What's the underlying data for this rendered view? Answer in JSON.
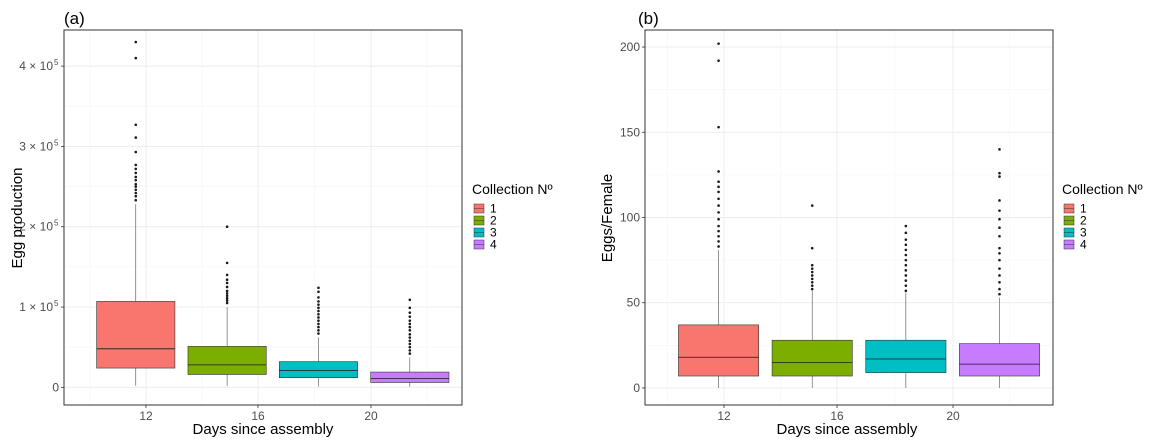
{
  "chart_data": [
    {
      "type": "box",
      "panel_label": "(a)",
      "xlabel": "Days since assembly",
      "ylabel": "Egg production",
      "x_ticks": [
        "12",
        "16",
        "20"
      ],
      "y_ticks": [
        {
          "value": 0,
          "base": "0",
          "exp": ""
        },
        {
          "value": 100000,
          "base": "1 × 10",
          "exp": "5"
        },
        {
          "value": 200000,
          "base": "2 × 10",
          "exp": "5"
        },
        {
          "value": 300000,
          "base": "3 × 10",
          "exp": "5"
        },
        {
          "value": 400000,
          "base": "4 × 10",
          "exp": "5"
        }
      ],
      "ylim": [
        -22000,
        445000
      ],
      "x_range": [
        8.25,
        23.5
      ],
      "legend": {
        "title": "Collection Nº",
        "entries": [
          {
            "label": "1",
            "color": "#F8766D"
          },
          {
            "label": "2",
            "color": "#7CAE00"
          },
          {
            "label": "3",
            "color": "#00BFC4"
          },
          {
            "label": "4",
            "color": "#C77CFF"
          }
        ]
      },
      "boxes": [
        {
          "group": "1",
          "color": "#F8766D",
          "center": 11,
          "width": 3,
          "whisker_low": 2000,
          "q1": 24000,
          "median": 48000,
          "q3": 107000,
          "whisker_high": 228000,
          "outliers": [
            430000,
            410000,
            327000,
            311000,
            293000,
            277000,
            272000,
            267000,
            262000,
            258000,
            253000,
            250000,
            246000,
            242000,
            238000,
            233000
          ]
        },
        {
          "group": "2",
          "color": "#7CAE00",
          "center": 14.5,
          "width": 3,
          "whisker_low": 1500,
          "q1": 16000,
          "median": 28000,
          "q3": 51000,
          "whisker_high": 100000,
          "outliers": [
            200000,
            155000,
            140000,
            134000,
            130000,
            125000,
            120000,
            117000,
            114000,
            111000,
            108000,
            105000
          ]
        },
        {
          "group": "3",
          "color": "#00BFC4",
          "center": 18,
          "width": 3,
          "whisker_low": 1000,
          "q1": 12000,
          "median": 21000,
          "q3": 32000,
          "whisker_high": 62000,
          "outliers": [
            124000,
            119000,
            112000,
            107000,
            103000,
            99000,
            95000,
            91000,
            87000,
            83000,
            79000,
            75000,
            71000,
            67000
          ]
        },
        {
          "group": "4",
          "color": "#C77CFF",
          "center": 21.5,
          "width": 3,
          "whisker_low": 500,
          "q1": 6000,
          "median": 11000,
          "q3": 19000,
          "whisker_high": 37000,
          "outliers": [
            109000,
            99000,
            93000,
            88000,
            83000,
            79000,
            75000,
            71000,
            66000,
            62000,
            58000,
            54000,
            50000,
            46000,
            42000
          ]
        }
      ]
    },
    {
      "type": "box",
      "panel_label": "(b)",
      "xlabel": "Days since assembly",
      "ylabel": "Eggs/Female",
      "x_ticks": [
        "12",
        "16",
        "20"
      ],
      "y_ticks": [
        {
          "value": 0,
          "base": "0",
          "exp": ""
        },
        {
          "value": 50,
          "base": "50",
          "exp": ""
        },
        {
          "value": 100,
          "base": "100",
          "exp": ""
        },
        {
          "value": 150,
          "base": "150",
          "exp": ""
        },
        {
          "value": 200,
          "base": "200",
          "exp": ""
        }
      ],
      "ylim": [
        -10,
        210
      ],
      "x_range": [
        8.25,
        23.5
      ],
      "legend": {
        "title": "Collection Nº",
        "entries": [
          {
            "label": "1",
            "color": "#F8766D"
          },
          {
            "label": "2",
            "color": "#7CAE00"
          },
          {
            "label": "3",
            "color": "#00BFC4"
          },
          {
            "label": "4",
            "color": "#C77CFF"
          }
        ]
      },
      "boxes": [
        {
          "group": "1",
          "color": "#F8766D",
          "center": 11,
          "width": 3,
          "whisker_low": 0,
          "q1": 7,
          "median": 18,
          "q3": 37,
          "whisker_high": 81,
          "outliers": [
            202,
            192,
            153,
            127,
            121,
            118,
            115,
            111,
            107,
            103,
            99,
            95,
            92,
            89,
            86,
            83
          ]
        },
        {
          "group": "2",
          "color": "#7CAE00",
          "center": 14.5,
          "width": 3,
          "whisker_low": 0,
          "q1": 7,
          "median": 15,
          "q3": 28,
          "whisker_high": 57,
          "outliers": [
            107,
            82,
            72,
            70,
            68,
            66,
            64,
            62,
            60,
            58
          ]
        },
        {
          "group": "3",
          "color": "#00BFC4",
          "center": 18,
          "width": 3,
          "whisker_low": 0,
          "q1": 9,
          "median": 17,
          "q3": 28,
          "whisker_high": 56,
          "outliers": [
            95,
            91,
            87,
            84,
            81,
            78,
            75,
            72,
            69,
            66,
            63,
            60,
            57
          ]
        },
        {
          "group": "4",
          "color": "#C77CFF",
          "center": 21.5,
          "width": 3,
          "whisker_low": 0,
          "q1": 7,
          "median": 14,
          "q3": 26,
          "whisker_high": 53,
          "outliers": [
            140,
            126,
            124,
            110,
            104,
            99,
            94,
            89,
            82,
            79,
            75,
            70,
            66,
            62,
            58,
            55
          ]
        }
      ]
    }
  ]
}
